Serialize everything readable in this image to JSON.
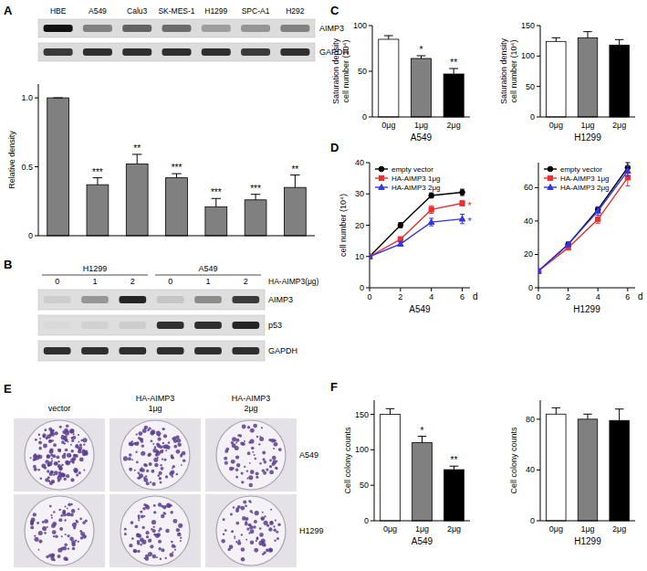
{
  "panel_labels": [
    "A",
    "B",
    "C",
    "D",
    "E",
    "F"
  ],
  "blot_A": {
    "rows": [
      {
        "name": "AIMP3",
        "intensity": [
          1.0,
          0.45,
          0.6,
          0.55,
          0.3,
          0.35,
          0.45
        ]
      },
      {
        "name": "GAPDH",
        "intensity": [
          0.8,
          0.85,
          0.85,
          0.85,
          0.85,
          0.8,
          0.85
        ]
      }
    ]
  },
  "blot_B": {
    "groups": [
      "H1299",
      "A549"
    ],
    "dose_label": "HA-AIMP3(μg)",
    "doses": [
      0,
      1,
      2,
      0,
      1,
      2
    ],
    "rows": [
      {
        "name": "AIMP3",
        "intensity": [
          0.08,
          0.35,
          0.9,
          0.12,
          0.4,
          0.8
        ]
      },
      {
        "name": "p53",
        "intensity": [
          0.02,
          0.06,
          0.08,
          0.85,
          0.85,
          0.9
        ]
      },
      {
        "name": "GAPDH",
        "intensity": [
          0.85,
          0.85,
          0.85,
          0.85,
          0.85,
          0.85
        ]
      }
    ]
  },
  "plates": {
    "columns": [
      [
        "vector"
      ],
      [
        "HA-AIMP3",
        "1μg"
      ],
      [
        "HA-AIMP3",
        "2μg"
      ]
    ],
    "rows": [
      "A549",
      "H1299"
    ]
  },
  "chart_data": [
    {
      "type": "bar",
      "ylabel": "Relative density",
      "categories": [
        "HBE",
        "A549",
        "Calu3",
        "SK-MES-1",
        "H1299",
        "SPC-A1",
        "H292"
      ],
      "values": [
        1,
        0.37,
        0.52,
        0.42,
        0.21,
        0.26,
        0.35
      ],
      "errors": [
        0,
        0.05,
        0.07,
        0.03,
        0.06,
        0.04,
        0.09
      ],
      "annotations": [
        null,
        "***",
        "**",
        "***",
        "***",
        "***",
        "**"
      ],
      "color": "#808080",
      "ylim": [
        0,
        1.1
      ],
      "yticks": [
        0,
        0.5,
        {
          "value": 1,
          "label": "1.0"
        }
      ],
      "tick_labels": "y"
    },
    {
      "type": "bar",
      "title": "A549",
      "ylabel": [
        "Saturation density",
        "cell number (10⁴)"
      ],
      "categories": [
        "0μg",
        "1μg",
        "2μg"
      ],
      "values": [
        85,
        64,
        47
      ],
      "errors": [
        4,
        3,
        6
      ],
      "annotations": [
        null,
        "*",
        "**"
      ],
      "colors": [
        "#ffffff",
        "#808080",
        "#000000"
      ],
      "ylim": [
        0,
        100
      ],
      "yticks": [
        0,
        50,
        100
      ]
    },
    {
      "type": "bar",
      "title": "H1299",
      "ylabel": [
        "Saturation density",
        "cell number (10⁴)"
      ],
      "categories": [
        "0μg",
        "1μg",
        "2μg"
      ],
      "values": [
        124,
        130,
        118
      ],
      "errors": [
        6,
        10,
        9
      ],
      "colors": [
        "#ffffff",
        "#808080",
        "#000000"
      ],
      "ylim": [
        0,
        150
      ],
      "yticks": [
        0,
        50,
        100,
        150
      ]
    },
    {
      "type": "line",
      "title": "A549",
      "xlabel": "d",
      "ylabel": "cell number (10⁴)",
      "x": [
        0,
        2,
        4,
        6
      ],
      "xlim": [
        0,
        6.5
      ],
      "xticks": [
        0,
        2,
        4,
        6
      ],
      "ylim": [
        0,
        40
      ],
      "yticks": [
        0,
        10,
        20,
        30,
        40
      ],
      "legend": "upper left",
      "series": [
        {
          "name": "empty vector",
          "color": "#000000",
          "marker": "circle",
          "values": [
            10,
            20,
            29.5,
            30.5
          ],
          "errors": [
            0.3,
            0.8,
            0.8,
            1
          ]
        },
        {
          "name": "HA-AIMP3 1μg",
          "color": "#e8312f",
          "marker": "square",
          "values": [
            10,
            15.5,
            25,
            27
          ],
          "errors": [
            0.3,
            0.8,
            1.2,
            0.8
          ],
          "annotation": "*"
        },
        {
          "name": "HA-AIMP3 2μg",
          "color": "#3434e6",
          "marker": "triangle",
          "values": [
            10,
            14,
            21,
            22
          ],
          "errors": [
            0.3,
            0.6,
            1.2,
            1.5
          ],
          "annotation": "*"
        }
      ]
    },
    {
      "type": "line",
      "title": "H1299",
      "xlabel": "d",
      "x": [
        0,
        2,
        4,
        6
      ],
      "xlim": [
        0,
        6.5
      ],
      "xticks": [
        0,
        2,
        4,
        6
      ],
      "ylim": [
        0,
        75
      ],
      "yticks": [
        0,
        20,
        40,
        60
      ],
      "legend": "upper left",
      "series": [
        {
          "name": "empty vector",
          "color": "#000000",
          "marker": "circle",
          "values": [
            10,
            26,
            47,
            72
          ],
          "errors": [
            1,
            1,
            1.5,
            3
          ]
        },
        {
          "name": "HA-AIMP3 1μg",
          "color": "#e8312f",
          "marker": "square",
          "values": [
            10,
            24,
            41,
            66
          ],
          "errors": [
            1,
            1,
            2.5,
            5
          ]
        },
        {
          "name": "HA-AIMP3 2μg",
          "color": "#3434e6",
          "marker": "triangle",
          "values": [
            10,
            26,
            46,
            70
          ],
          "errors": [
            1,
            1.5,
            2.5,
            3
          ]
        }
      ]
    },
    {
      "type": "bar",
      "title": "A549",
      "ylabel": "Cell colony counts",
      "categories": [
        "0μg",
        "1μg",
        "2μg"
      ],
      "values": [
        150,
        110,
        72
      ],
      "errors": [
        8,
        9,
        5
      ],
      "annotations": [
        null,
        "*",
        "**"
      ],
      "colors": [
        "#ffffff",
        "#808080",
        "#000000"
      ],
      "ylim": [
        0,
        170
      ],
      "yticks": [
        0,
        50,
        100,
        150
      ]
    },
    {
      "type": "bar",
      "title": "H1299",
      "ylabel": "Cell colony counts",
      "categories": [
        "0μg",
        "1μg",
        "2μg"
      ],
      "values": [
        84,
        80,
        79
      ],
      "errors": [
        5,
        4,
        9
      ],
      "colors": [
        "#ffffff",
        "#808080",
        "#000000"
      ],
      "ylim": [
        0,
        95
      ],
      "yticks": [
        0,
        40,
        80
      ]
    }
  ]
}
